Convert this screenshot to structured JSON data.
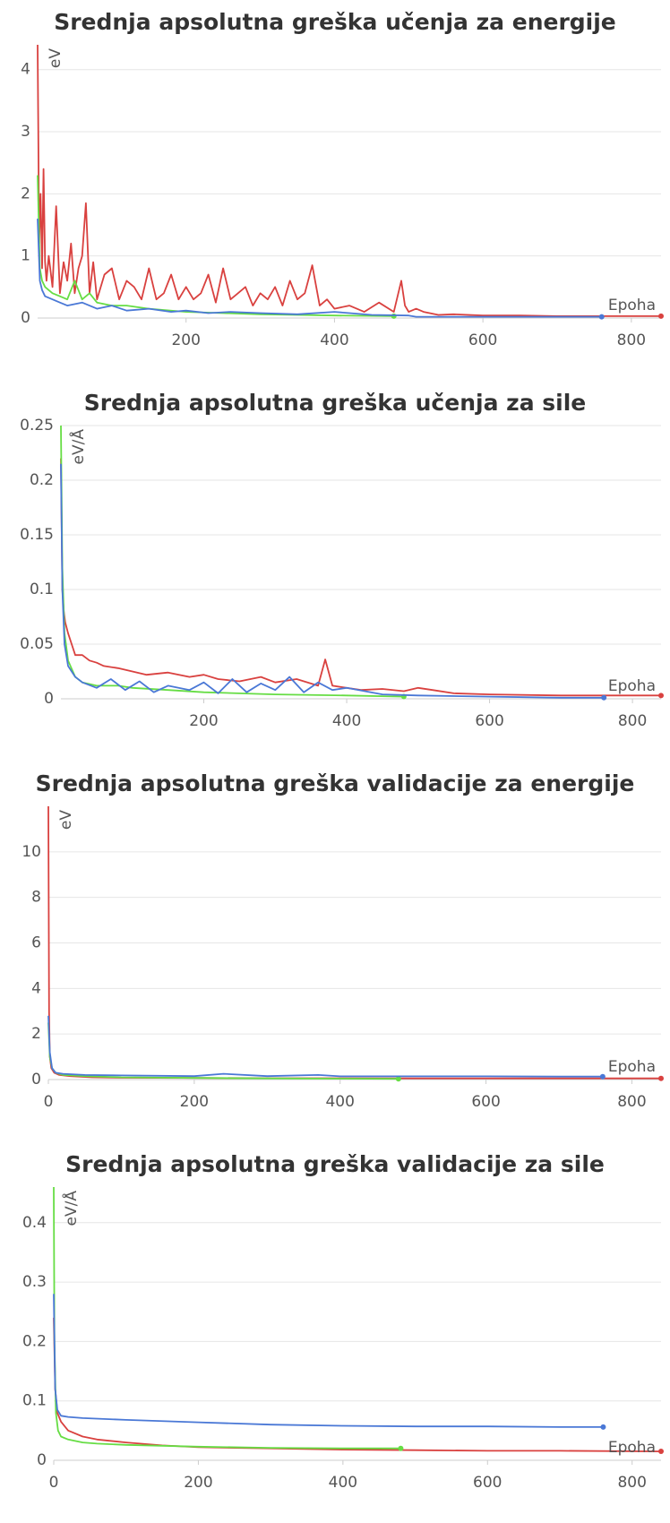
{
  "chart_data": [
    {
      "type": "line",
      "title": "Srednja apsolutna greška učenja za energije",
      "ylabel": "eV",
      "xlabel": "Epoha",
      "xlim": [
        0,
        840
      ],
      "ylim": [
        0,
        4.4
      ],
      "xticks": [
        200,
        400,
        600,
        800
      ],
      "yticks": [
        0,
        1,
        2,
        3,
        4
      ],
      "grid": true,
      "series": [
        {
          "color": "#d9413f",
          "x": [
            0,
            2,
            4,
            6,
            8,
            10,
            12,
            15,
            20,
            25,
            30,
            35,
            40,
            45,
            50,
            55,
            60,
            65,
            70,
            75,
            80,
            90,
            100,
            110,
            120,
            130,
            140,
            150,
            160,
            170,
            180,
            190,
            200,
            210,
            220,
            230,
            240,
            250,
            260,
            270,
            280,
            290,
            300,
            310,
            320,
            330,
            340,
            350,
            360,
            370,
            380,
            390,
            400,
            420,
            440,
            460,
            480,
            490,
            495,
            500,
            510,
            520,
            540,
            560,
            600,
            650,
            700,
            750,
            800,
            840
          ],
          "values": [
            4.4,
            1.2,
            2.0,
            0.8,
            2.4,
            0.9,
            0.6,
            1.0,
            0.5,
            1.8,
            0.4,
            0.9,
            0.6,
            1.2,
            0.4,
            0.8,
            1.0,
            1.85,
            0.4,
            0.9,
            0.3,
            0.7,
            0.8,
            0.3,
            0.6,
            0.5,
            0.3,
            0.8,
            0.3,
            0.4,
            0.7,
            0.3,
            0.5,
            0.3,
            0.4,
            0.7,
            0.25,
            0.8,
            0.3,
            0.4,
            0.5,
            0.2,
            0.4,
            0.3,
            0.5,
            0.2,
            0.6,
            0.3,
            0.4,
            0.85,
            0.2,
            0.3,
            0.15,
            0.2,
            0.1,
            0.25,
            0.1,
            0.6,
            0.2,
            0.1,
            0.15,
            0.1,
            0.05,
            0.06,
            0.04,
            0.04,
            0.03,
            0.03,
            0.03,
            0.03
          ]
        },
        {
          "color": "#66dd44",
          "x": [
            0,
            3,
            6,
            10,
            15,
            20,
            30,
            40,
            50,
            60,
            70,
            80,
            100,
            120,
            150,
            200,
            250,
            300,
            350,
            400,
            480
          ],
          "values": [
            2.3,
            0.8,
            0.6,
            0.5,
            0.45,
            0.4,
            0.35,
            0.3,
            0.6,
            0.3,
            0.4,
            0.25,
            0.2,
            0.2,
            0.15,
            0.1,
            0.08,
            0.06,
            0.05,
            0.04,
            0.03
          ]
        },
        {
          "color": "#4a78d6",
          "x": [
            0,
            3,
            6,
            10,
            20,
            30,
            40,
            60,
            80,
            100,
            120,
            150,
            180,
            200,
            230,
            260,
            300,
            350,
            400,
            450,
            500,
            510,
            600,
            700,
            760
          ],
          "values": [
            1.6,
            0.6,
            0.45,
            0.35,
            0.3,
            0.25,
            0.2,
            0.25,
            0.15,
            0.2,
            0.12,
            0.15,
            0.1,
            0.12,
            0.08,
            0.1,
            0.08,
            0.06,
            0.1,
            0.05,
            0.04,
            0.02,
            0.02,
            0.02,
            0.02
          ]
        }
      ]
    },
    {
      "type": "line",
      "title": "Srednja apsolutna greška učenja za sile",
      "ylabel": "eV/Å",
      "xlabel": "Epoha",
      "xlim": [
        0,
        840
      ],
      "ylim": [
        0,
        0.25
      ],
      "xticks": [
        200,
        400,
        600,
        800
      ],
      "yticks": [
        0,
        0.05,
        0.1,
        0.15,
        0.2,
        0.25
      ],
      "grid": true,
      "series": [
        {
          "color": "#d9413f",
          "x": [
            0,
            2,
            4,
            6,
            10,
            15,
            20,
            30,
            40,
            50,
            60,
            80,
            100,
            120,
            150,
            180,
            200,
            220,
            250,
            280,
            300,
            330,
            360,
            370,
            380,
            400,
            420,
            450,
            480,
            500,
            520,
            550,
            600,
            700,
            800,
            840
          ],
          "values": [
            0.22,
            0.1,
            0.08,
            0.07,
            0.06,
            0.05,
            0.04,
            0.04,
            0.035,
            0.033,
            0.03,
            0.028,
            0.025,
            0.022,
            0.024,
            0.02,
            0.022,
            0.018,
            0.016,
            0.02,
            0.015,
            0.018,
            0.012,
            0.036,
            0.012,
            0.01,
            0.008,
            0.009,
            0.007,
            0.01,
            0.008,
            0.005,
            0.004,
            0.003,
            0.003,
            0.003
          ]
        },
        {
          "color": "#66dd44",
          "x": [
            0,
            2,
            5,
            10,
            20,
            30,
            50,
            80,
            100,
            150,
            200,
            300,
            400,
            480
          ],
          "values": [
            0.25,
            0.12,
            0.06,
            0.035,
            0.02,
            0.015,
            0.012,
            0.012,
            0.01,
            0.008,
            0.006,
            0.004,
            0.003,
            0.002
          ]
        },
        {
          "color": "#4a78d6",
          "x": [
            0,
            2,
            5,
            10,
            20,
            30,
            50,
            70,
            90,
            110,
            130,
            150,
            180,
            200,
            220,
            240,
            260,
            280,
            300,
            320,
            340,
            360,
            380,
            400,
            450,
            500,
            600,
            700,
            760
          ],
          "values": [
            0.215,
            0.1,
            0.05,
            0.03,
            0.02,
            0.015,
            0.01,
            0.018,
            0.008,
            0.016,
            0.006,
            0.012,
            0.008,
            0.015,
            0.005,
            0.018,
            0.006,
            0.014,
            0.008,
            0.02,
            0.006,
            0.015,
            0.008,
            0.01,
            0.004,
            0.003,
            0.002,
            0.001,
            0.001
          ]
        }
      ]
    },
    {
      "type": "line",
      "title": "Srednja apsolutna greška validacije za energije",
      "ylabel": "eV",
      "xlabel": "Epoha",
      "xlim": [
        0,
        840
      ],
      "ylim": [
        0,
        12
      ],
      "xticks": [
        0,
        200,
        400,
        600,
        800
      ],
      "yticks": [
        0,
        2,
        4,
        6,
        8,
        10
      ],
      "grid": true,
      "series": [
        {
          "color": "#d9413f",
          "x": [
            0,
            1,
            2,
            4,
            8,
            15,
            30,
            60,
            100,
            200,
            300,
            400,
            500,
            600,
            700,
            840
          ],
          "values": [
            12,
            3,
            1,
            0.5,
            0.3,
            0.2,
            0.15,
            0.1,
            0.08,
            0.07,
            0.06,
            0.06,
            0.05,
            0.05,
            0.05,
            0.05
          ]
        },
        {
          "color": "#66dd44",
          "x": [
            0,
            2,
            5,
            10,
            20,
            50,
            100,
            200,
            300,
            400,
            480
          ],
          "values": [
            2.5,
            1,
            0.5,
            0.3,
            0.2,
            0.15,
            0.1,
            0.07,
            0.05,
            0.04,
            0.03
          ]
        },
        {
          "color": "#4a78d6",
          "x": [
            0,
            2,
            5,
            10,
            20,
            50,
            100,
            200,
            240,
            300,
            370,
            400,
            500,
            600,
            700,
            760
          ],
          "values": [
            2.8,
            1.2,
            0.5,
            0.3,
            0.25,
            0.2,
            0.18,
            0.15,
            0.25,
            0.15,
            0.2,
            0.14,
            0.14,
            0.14,
            0.13,
            0.13
          ]
        }
      ]
    },
    {
      "type": "line",
      "title": "Srednja apsolutna greška validacije za sile",
      "ylabel": "eV/Å",
      "xlabel": "Epoha",
      "xlim": [
        0,
        840
      ],
      "ylim": [
        0,
        0.46
      ],
      "xticks": [
        0,
        200,
        400,
        600,
        800
      ],
      "yticks": [
        0,
        0.1,
        0.2,
        0.3,
        0.4
      ],
      "grid": true,
      "series": [
        {
          "color": "#d9413f",
          "x": [
            0,
            2,
            5,
            10,
            20,
            40,
            60,
            100,
            150,
            200,
            300,
            400,
            500,
            600,
            700,
            840
          ],
          "values": [
            0.24,
            0.12,
            0.08,
            0.065,
            0.05,
            0.04,
            0.035,
            0.03,
            0.025,
            0.022,
            0.02,
            0.018,
            0.017,
            0.016,
            0.016,
            0.015
          ]
        },
        {
          "color": "#66dd44",
          "x": [
            0,
            1,
            3,
            6,
            10,
            20,
            40,
            60,
            100,
            200,
            300,
            400,
            480
          ],
          "values": [
            0.46,
            0.2,
            0.08,
            0.05,
            0.04,
            0.035,
            0.03,
            0.028,
            0.026,
            0.023,
            0.021,
            0.02,
            0.02
          ]
        },
        {
          "color": "#4a78d6",
          "x": [
            0,
            2,
            5,
            10,
            20,
            40,
            100,
            200,
            300,
            400,
            500,
            600,
            700,
            760
          ],
          "values": [
            0.28,
            0.12,
            0.085,
            0.075,
            0.073,
            0.071,
            0.068,
            0.064,
            0.06,
            0.058,
            0.057,
            0.057,
            0.056,
            0.056
          ]
        }
      ]
    }
  ]
}
